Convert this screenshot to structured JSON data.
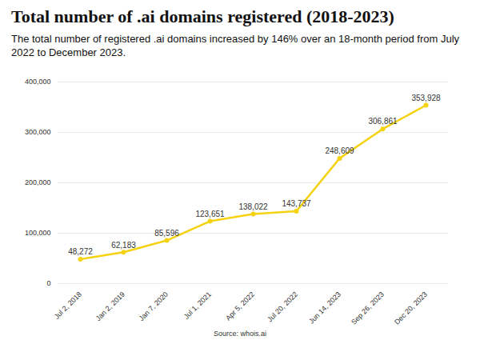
{
  "chart_data": {
    "type": "line",
    "title": "Total number of .ai domains registered (2018-2023)",
    "subtitle": "The total number of registered .ai domains increased by 146% over an 18-month period from July 2022 to December 2023.",
    "source": "Source: whois.ai",
    "categories": [
      "Jul 2, 2018",
      "Jan 2, 2019",
      "Jan 7, 2020",
      "Jul 1, 2021",
      "Apr 5, 2022",
      "Jul 20, 2022",
      "Jun 14, 2023",
      "Sep 26, 2023",
      "Dec 20, 2023"
    ],
    "values": [
      48272,
      62183,
      85596,
      123651,
      138022,
      143737,
      248609,
      306861,
      353928
    ],
    "value_labels": [
      "48,272",
      "62,183",
      "85,596",
      "123,651",
      "138,022",
      "143,737",
      "248,609",
      "306,861",
      "353,928"
    ],
    "color": "#f5d312",
    "marker": "circle",
    "ylim": [
      0,
      400000
    ],
    "yticks": [
      0,
      {
        "value": 100000,
        "label": "100,000"
      },
      {
        "value": 200000,
        "label": "200,000"
      },
      {
        "value": 300000,
        "label": "300,000"
      },
      {
        "value": 400000,
        "label": "400,000"
      }
    ],
    "grid": true,
    "data_labels": true
  }
}
